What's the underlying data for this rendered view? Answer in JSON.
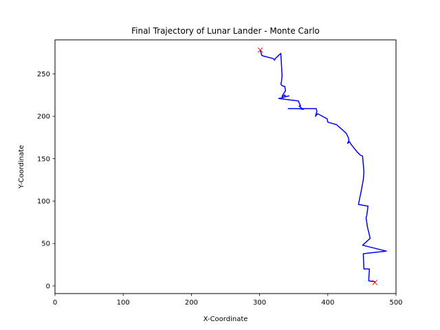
{
  "chart_data": {
    "type": "line",
    "title": "Final Trajectory of Lunar Lander - Monte Carlo",
    "xlabel": "X-Coordinate",
    "ylabel": "Y-Coordinate",
    "xlim": [
      0,
      500
    ],
    "ylim": [
      -9,
      290
    ],
    "xticks": [
      0,
      100,
      200,
      300,
      400,
      500
    ],
    "yticks": [
      0,
      50,
      100,
      150,
      200,
      250
    ],
    "grid": false,
    "series": [
      {
        "color": "#0000ff",
        "x": [
          301,
          302,
          303,
          305,
          320,
          322,
          323,
          331,
          332,
          333,
          332,
          331,
          333,
          337,
          338,
          334,
          333,
          337,
          338,
          343,
          337,
          335,
          328,
          357,
          360,
          358,
          364,
          358,
          345,
          342,
          383,
          384,
          382,
          385,
          399,
          400,
          413,
          420,
          427,
          430,
          431,
          429,
          432,
          434,
          444,
          448,
          451,
          453,
          452,
          449,
          447,
          445,
          459,
          457,
          456,
          458,
          461,
          462,
          451,
          486,
          452,
          452,
          453,
          461,
          460,
          469,
          469
        ],
        "y": [
          278,
          275,
          272,
          271,
          268,
          266,
          268,
          274,
          262,
          248,
          240,
          238,
          236,
          235,
          230,
          225,
          223,
          225,
          223,
          224,
          223,
          222,
          221,
          218,
          212,
          212,
          208,
          209,
          209,
          209,
          209,
          206,
          200,
          203,
          197,
          193,
          190,
          185,
          180,
          175,
          172,
          168,
          170,
          167,
          157,
          154,
          153,
          134,
          125,
          112,
          104,
          96,
          94,
          82,
          81,
          70,
          60,
          56,
          48,
          41,
          38,
          38,
          20,
          20,
          6,
          5,
          4
        ]
      }
    ],
    "markers": {
      "color": "#ff0000",
      "symbol": "x",
      "points": [
        {
          "x": 301,
          "y": 278
        },
        {
          "x": 469,
          "y": 4
        }
      ]
    }
  }
}
